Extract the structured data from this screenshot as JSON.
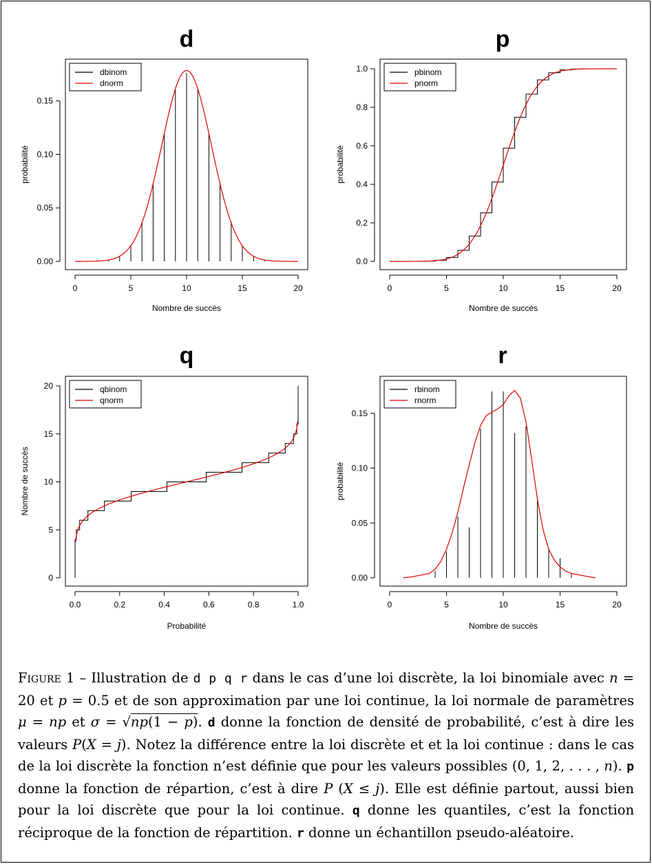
{
  "chart_data": [
    {
      "type": "bar+line",
      "title": "d",
      "xlabel": "Nombre de succès",
      "ylabel": "probabilité",
      "xlim": [
        0,
        20
      ],
      "ylim": [
        0,
        0.18
      ],
      "xticks": [
        "0",
        "5",
        "10",
        "15",
        "20"
      ],
      "yticks": [
        "0.00",
        "0.05",
        "0.10",
        "0.15"
      ],
      "legend": {
        "position": "top-left",
        "entries": [
          {
            "name": "dbinom",
            "color": "#000000"
          },
          {
            "name": "dnorm",
            "color": "#e00000"
          }
        ]
      },
      "series": [
        {
          "name": "dbinom",
          "kind": "spikes",
          "x": [
            0,
            1,
            2,
            3,
            4,
            5,
            6,
            7,
            8,
            9,
            10,
            11,
            12,
            13,
            14,
            15,
            16,
            17,
            18,
            19,
            20
          ],
          "y": [
            1e-06,
            2e-05,
            0.0002,
            0.0011,
            0.0046,
            0.0148,
            0.037,
            0.0739,
            0.1201,
            0.1602,
            0.1762,
            0.1602,
            0.1201,
            0.0739,
            0.037,
            0.0148,
            0.0046,
            0.0011,
            0.0002,
            2e-05,
            1e-06
          ]
        },
        {
          "name": "dnorm",
          "kind": "normal-density",
          "mean": 10,
          "sd": 2.2361
        }
      ]
    },
    {
      "type": "step+line",
      "title": "p",
      "xlabel": "Nombre de succès",
      "ylabel": "probabilité",
      "xlim": [
        0,
        20
      ],
      "ylim": [
        0,
        1
      ],
      "xticks": [
        "0",
        "5",
        "10",
        "15",
        "20"
      ],
      "yticks": [
        "0.0",
        "0.2",
        "0.4",
        "0.6",
        "0.8",
        "1.0"
      ],
      "legend": {
        "position": "top-left",
        "entries": [
          {
            "name": "pbinom",
            "color": "#000000"
          },
          {
            "name": "pnorm",
            "color": "#e00000"
          }
        ]
      },
      "series": [
        {
          "name": "pbinom",
          "kind": "step",
          "x": [
            0,
            1,
            2,
            3,
            4,
            5,
            6,
            7,
            8,
            9,
            10,
            11,
            12,
            13,
            14,
            15,
            16,
            17,
            18,
            19,
            20
          ],
          "y": [
            1e-06,
            2e-05,
            0.0002,
            0.0013,
            0.0059,
            0.0207,
            0.0577,
            0.1316,
            0.2517,
            0.4119,
            0.5881,
            0.7483,
            0.8684,
            0.9423,
            0.9793,
            0.9941,
            0.9987,
            0.9998,
            1.0,
            1.0,
            1.0
          ]
        },
        {
          "name": "pnorm",
          "kind": "normal-cdf",
          "mean": 10,
          "sd": 2.2361
        }
      ]
    },
    {
      "type": "step+line",
      "title": "q",
      "xlabel": "Probabilité",
      "ylabel": "Nombre de succès",
      "xlim": [
        0,
        1
      ],
      "ylim": [
        0,
        20
      ],
      "xticks": [
        "0.0",
        "0.2",
        "0.4",
        "0.6",
        "0.8",
        "1.0"
      ],
      "yticks": [
        "0",
        "5",
        "10",
        "15",
        "20"
      ],
      "legend": {
        "position": "top-left",
        "entries": [
          {
            "name": "qbinom",
            "color": "#000000"
          },
          {
            "name": "qnorm",
            "color": "#e00000"
          }
        ]
      },
      "series": [
        {
          "name": "qbinom",
          "kind": "quantile-step"
        },
        {
          "name": "qnorm",
          "kind": "normal-quantile",
          "mean": 10,
          "sd": 2.2361
        }
      ]
    },
    {
      "type": "bar+line",
      "title": "r",
      "xlabel": "Nombre de succès",
      "ylabel": "probabilité",
      "xlim": [
        0,
        20
      ],
      "ylim": [
        0,
        0.175
      ],
      "xticks": [
        "0",
        "5",
        "10",
        "15",
        "20"
      ],
      "yticks": [
        "0.00",
        "0.05",
        "0.10",
        "0.15"
      ],
      "legend": {
        "position": "top-left",
        "entries": [
          {
            "name": "rbinom",
            "color": "#000000"
          },
          {
            "name": "rnorm",
            "color": "#e00000"
          }
        ]
      },
      "series": [
        {
          "name": "rbinom",
          "kind": "spikes",
          "x": [
            4,
            5,
            6,
            7,
            8,
            9,
            10,
            11,
            12,
            13,
            14,
            15,
            16
          ],
          "y": [
            0.006,
            0.024,
            0.056,
            0.046,
            0.136,
            0.17,
            0.17,
            0.132,
            0.138,
            0.072,
            0.026,
            0.018,
            0.004
          ]
        },
        {
          "name": "rnorm",
          "kind": "density",
          "x": [
            1.2,
            2,
            3,
            3.5,
            4,
            4.5,
            5,
            5.5,
            6,
            6.5,
            7,
            7.5,
            8,
            8.5,
            9,
            9.5,
            10,
            10.5,
            11,
            11.5,
            12,
            12.5,
            13,
            13.5,
            14,
            14.5,
            15,
            15.5,
            16,
            17,
            18.1
          ],
          "y": [
            0,
            0.001,
            0.003,
            0.004,
            0.008,
            0.015,
            0.026,
            0.041,
            0.06,
            0.082,
            0.103,
            0.123,
            0.139,
            0.148,
            0.151,
            0.154,
            0.158,
            0.166,
            0.171,
            0.164,
            0.142,
            0.108,
            0.072,
            0.044,
            0.026,
            0.016,
            0.01,
            0.006,
            0.004,
            0.002,
            0.0
          ]
        }
      ]
    }
  ]
}
